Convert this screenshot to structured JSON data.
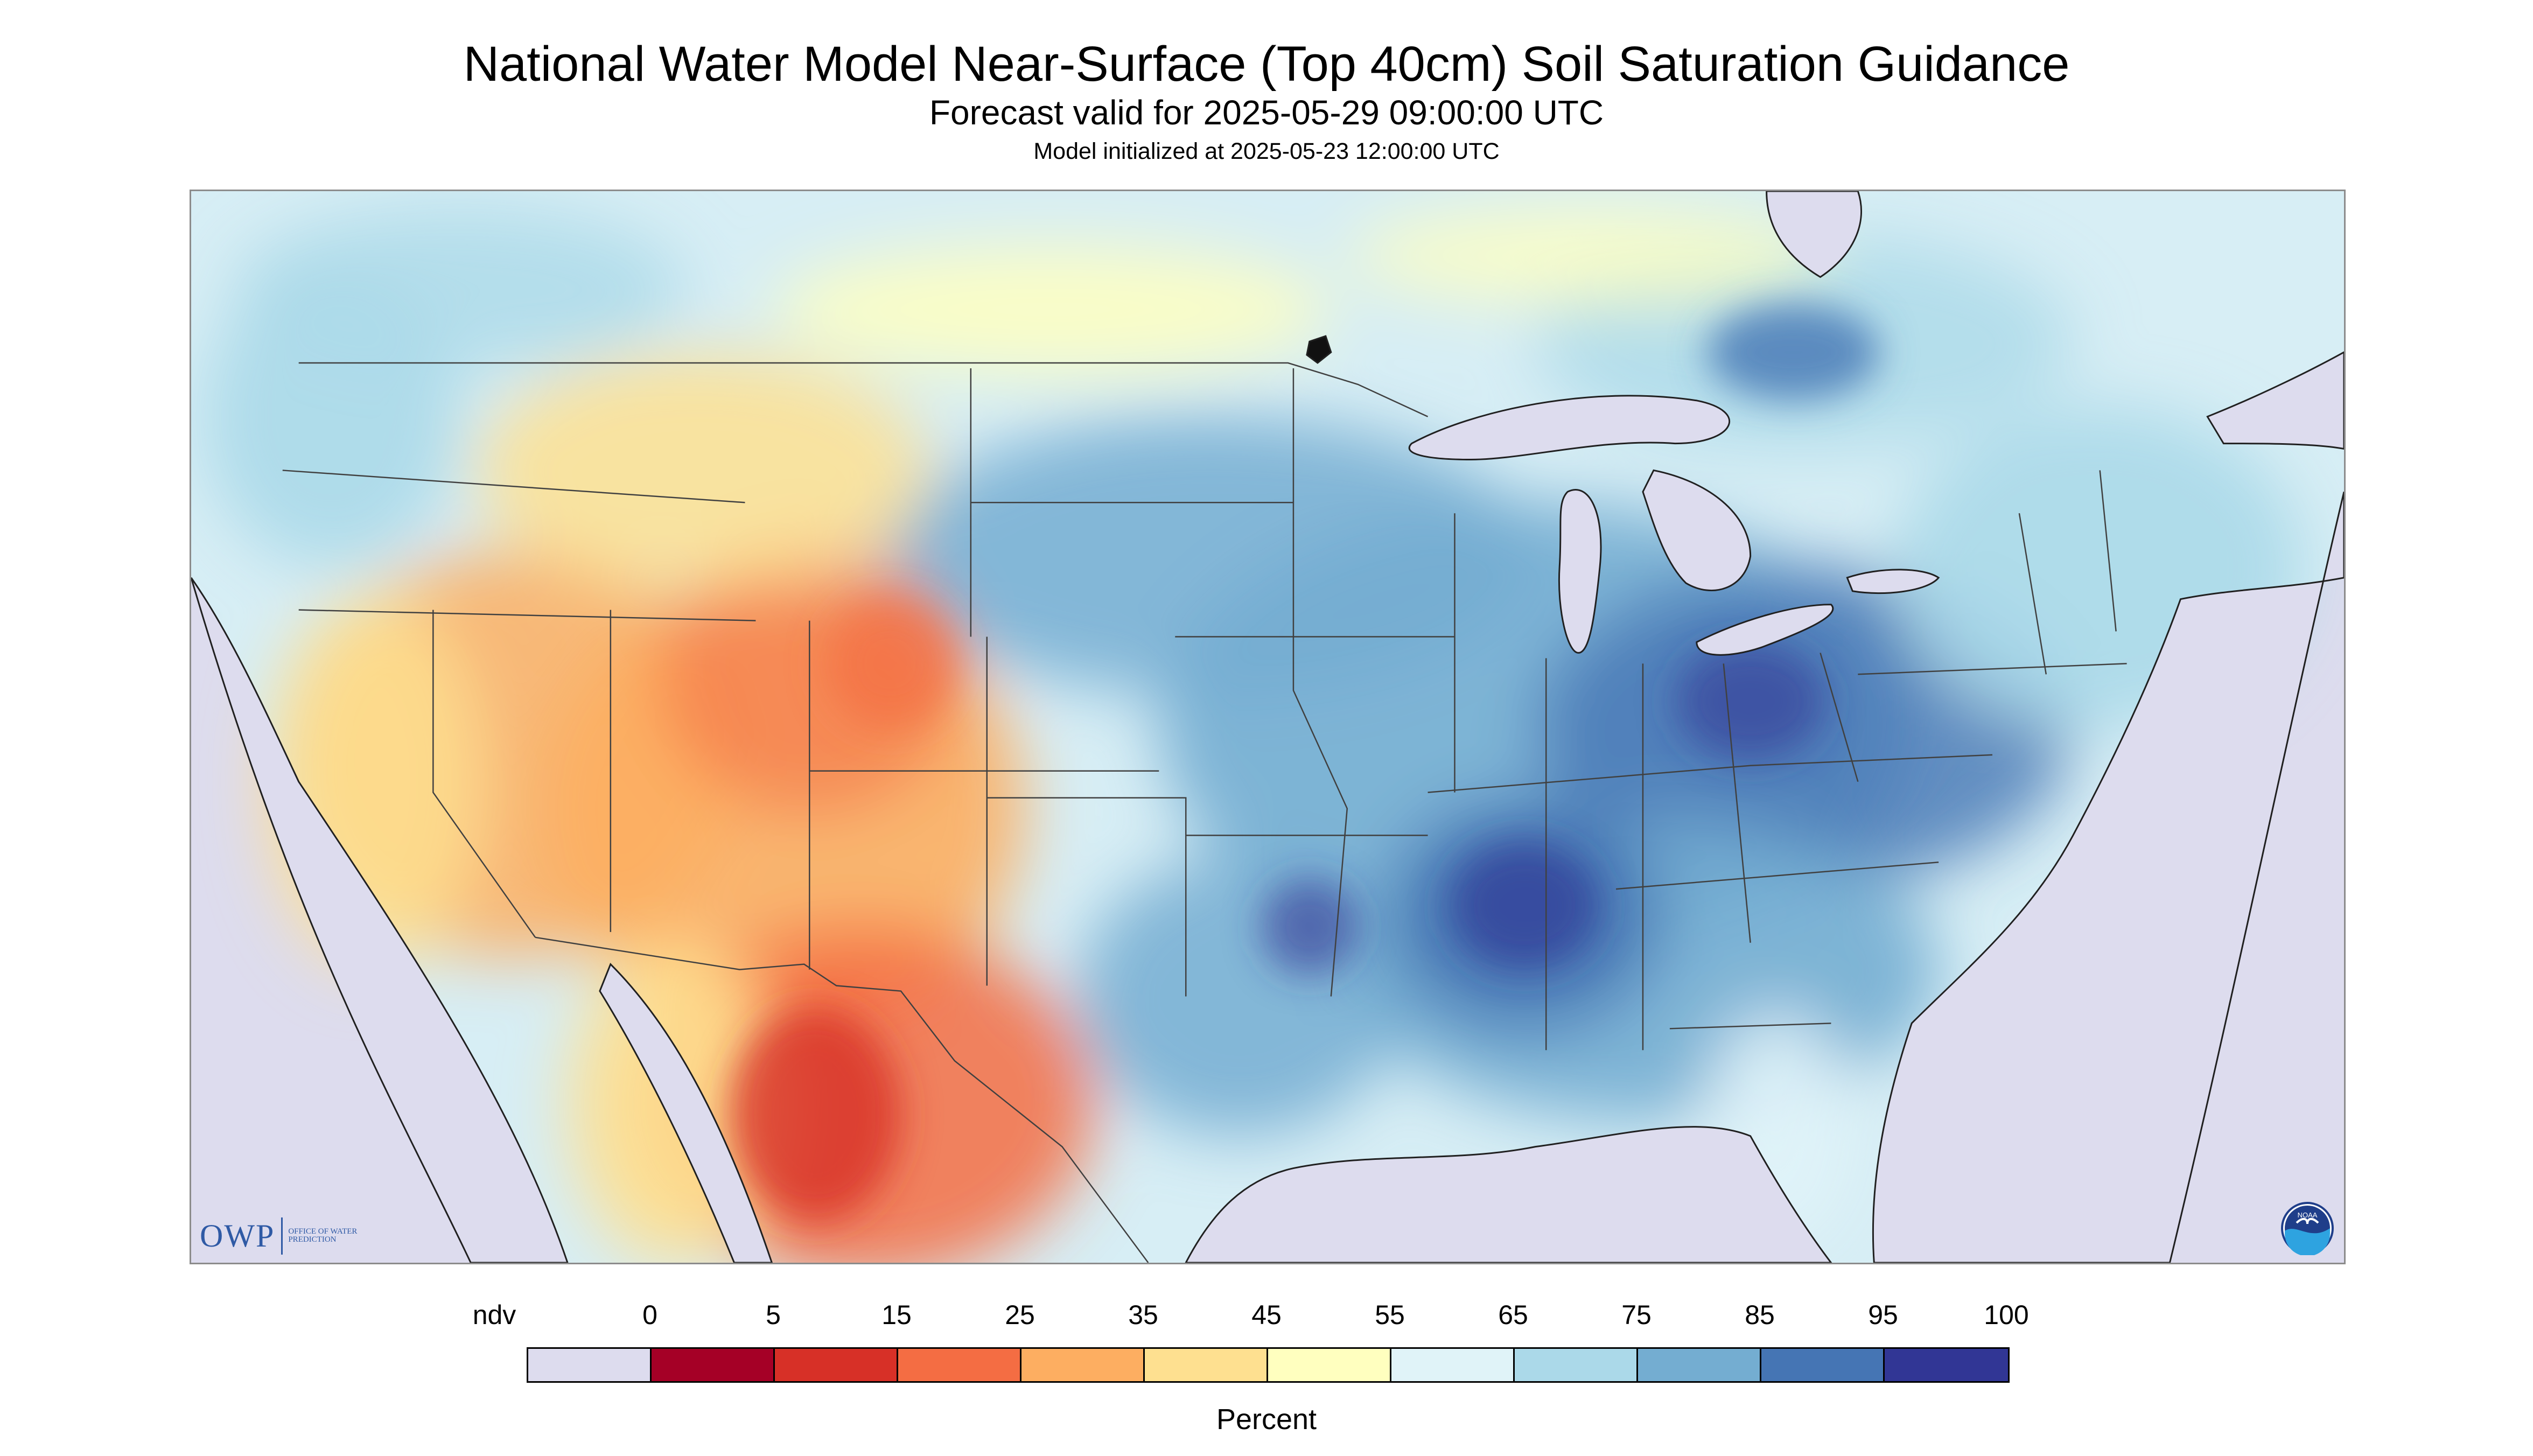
{
  "header": {
    "title": "National Water Model Near-Surface (Top 40cm) Soil Saturation Guidance",
    "subtitle": "Forecast valid for 2025-05-29 09:00:00 UTC",
    "init_line": "Model initialized at 2025-05-23 12:00:00 UTC"
  },
  "map": {
    "background_color": "#dddcee",
    "land_base_color": "#d7eef5",
    "water_color": "#dddcee",
    "border_color": "#404040"
  },
  "logos": {
    "owp_mark": "OWP",
    "owp_text": "Office of Water Prediction",
    "noaa_text": "NOAA"
  },
  "legend": {
    "labels": [
      "ndv",
      "0",
      "5",
      "15",
      "25",
      "35",
      "45",
      "55",
      "65",
      "75",
      "85",
      "95",
      "100"
    ],
    "colors": [
      "#dddcee",
      "#a50026",
      "#d73027",
      "#f46d43",
      "#fdae61",
      "#fee090",
      "#ffffbf",
      "#e0f3f8",
      "#abd9e9",
      "#74add1",
      "#4575b4",
      "#313695"
    ],
    "units": "Percent"
  }
}
